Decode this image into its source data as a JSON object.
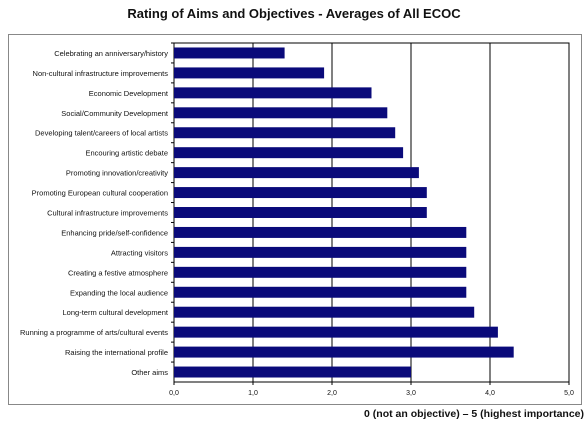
{
  "chart_data": {
    "type": "bar",
    "orientation": "horizontal",
    "title": "Rating of Aims and Objectives - Averages of All ECOC",
    "xlabel": "0 (not an objective) – 5 (highest importance)",
    "xlim": [
      0,
      5
    ],
    "xticks": [
      "0,0",
      "1,0",
      "2,0",
      "3,0",
      "4,0",
      "5,0"
    ],
    "grid": "vertical major lines",
    "bar_color": "#0a0a7a",
    "categories": [
      "Celebrating an anniversary/history",
      "Non-cultural infrastructure improvements",
      "Economic Development",
      "Social/Community Development",
      "Developing talent/careers of local artists",
      "Encouring artistic debate",
      "Promoting innovation/creativity",
      "Promoting European cultural cooperation",
      "Cultural infrastructure improvements",
      "Enhancing pride/self-confidence",
      "Attracting visitors",
      "Creating a festive atmosphere",
      "Expanding the local audience",
      "Long-term cultural development",
      "Running a programme of arts/cultural events",
      "Raising the international profile",
      "Other aims"
    ],
    "values": [
      1.4,
      1.9,
      2.5,
      2.7,
      2.8,
      2.9,
      3.1,
      3.2,
      3.2,
      3.7,
      3.7,
      3.7,
      3.7,
      3.8,
      4.1,
      4.3,
      3.0
    ]
  }
}
